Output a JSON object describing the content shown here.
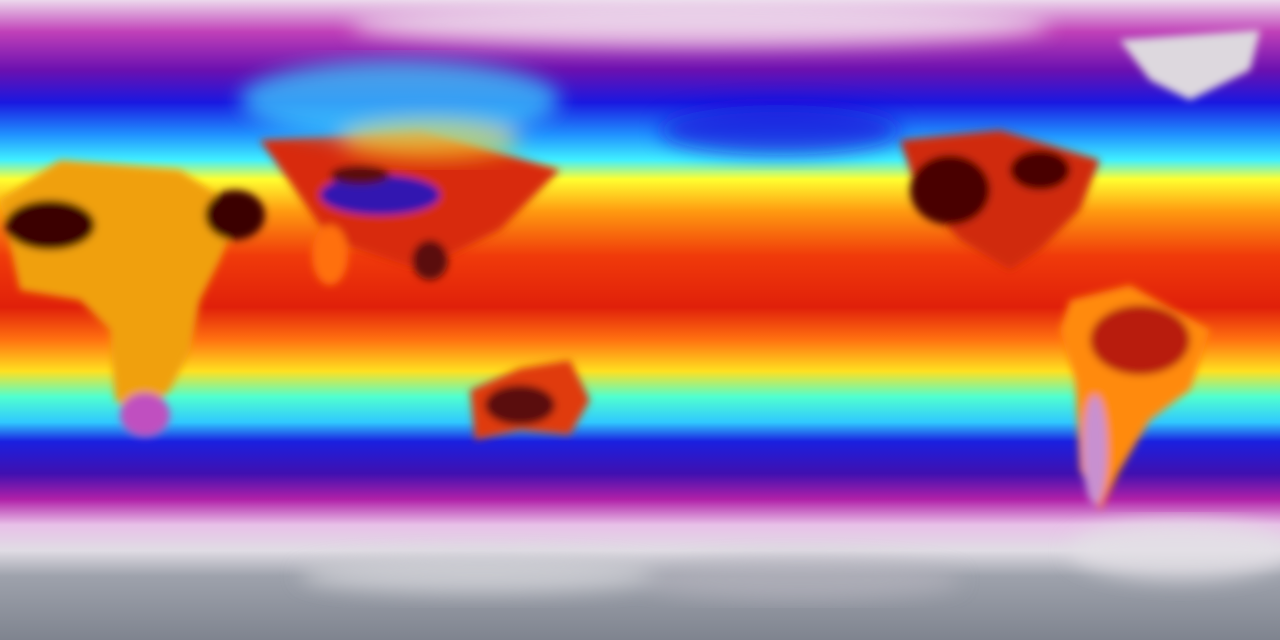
{
  "map": {
    "projection": "equirectangular",
    "colormap": [
      "#e9e3ea",
      "#b01aa8",
      "#1a10d8",
      "#20e0ff",
      "#ffff20",
      "#ff8a10",
      "#e81a0a",
      "#5a0a0a",
      "#8a8f9a"
    ],
    "colors": {
      "polar_ice": "#9a9ea8",
      "cold": "#b01aa8",
      "cool": "#1a10d8",
      "mild": "#30f0ff",
      "warm": "#ffee10",
      "hot": "#e8280a",
      "hottest": "#3a0808"
    }
  }
}
